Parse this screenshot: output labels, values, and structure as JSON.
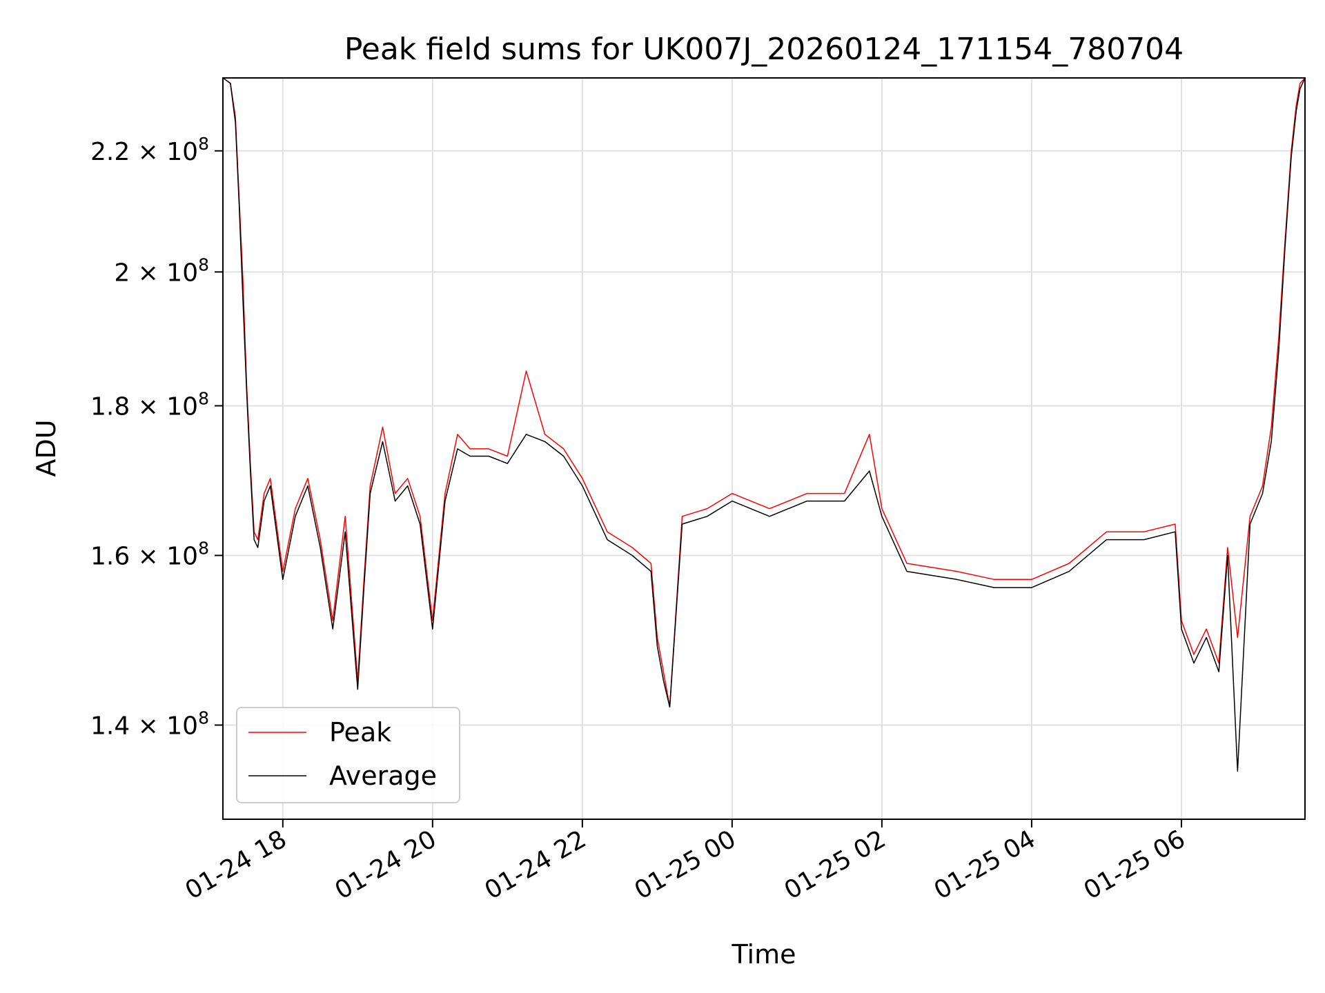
{
  "chart_data": {
    "type": "line",
    "title": "Peak field sums for UK007J_20260124_171154_780704",
    "xlabel": "Time",
    "ylabel": "ADU",
    "y_scale": "log",
    "ylim": [
      130000000,
      233000000
    ],
    "xlim": [
      "2026-01-24T17:12",
      "2026-01-25T07:39"
    ],
    "grid": true,
    "legend_placement": "lower-left",
    "x_ticks": [
      {
        "value": "2026-01-24T18:00",
        "label": "01-24 18"
      },
      {
        "value": "2026-01-24T20:00",
        "label": "01-24 20"
      },
      {
        "value": "2026-01-24T22:00",
        "label": "01-24 22"
      },
      {
        "value": "2026-01-25T00:00",
        "label": "01-25 00"
      },
      {
        "value": "2026-01-25T02:00",
        "label": "01-25 02"
      },
      {
        "value": "2026-01-25T04:00",
        "label": "01-25 04"
      },
      {
        "value": "2026-01-25T06:00",
        "label": "01-25 06"
      }
    ],
    "y_ticks": [
      {
        "value": 140000000,
        "label": "1.4 × 10",
        "exp": "8"
      },
      {
        "value": 160000000,
        "label": "1.6 × 10",
        "exp": "8"
      },
      {
        "value": 180000000,
        "label": "1.8 × 10",
        "exp": "8"
      },
      {
        "value": 200000000,
        "label": "2 × 10",
        "exp": "8"
      },
      {
        "value": 220000000,
        "label": "2.2 × 10",
        "exp": "8"
      }
    ],
    "series": [
      {
        "name": "Peak",
        "color": "#ff0000",
        "x": [
          "2026-01-24T17:12",
          "2026-01-24T17:18",
          "2026-01-24T17:22",
          "2026-01-24T17:25",
          "2026-01-24T17:28",
          "2026-01-24T17:31",
          "2026-01-24T17:34",
          "2026-01-24T17:37",
          "2026-01-24T17:40",
          "2026-01-24T17:45",
          "2026-01-24T17:50",
          "2026-01-24T18:00",
          "2026-01-24T18:10",
          "2026-01-24T18:20",
          "2026-01-24T18:30",
          "2026-01-24T18:40",
          "2026-01-24T18:50",
          "2026-01-24T19:00",
          "2026-01-24T19:05",
          "2026-01-24T19:10",
          "2026-01-24T19:20",
          "2026-01-24T19:30",
          "2026-01-24T19:40",
          "2026-01-24T19:50",
          "2026-01-24T20:00",
          "2026-01-24T20:10",
          "2026-01-24T20:20",
          "2026-01-24T20:30",
          "2026-01-24T20:45",
          "2026-01-24T21:00",
          "2026-01-24T21:15",
          "2026-01-24T21:30",
          "2026-01-24T21:45",
          "2026-01-24T22:00",
          "2026-01-24T22:20",
          "2026-01-24T22:40",
          "2026-01-24T22:55",
          "2026-01-24T23:00",
          "2026-01-24T23:05",
          "2026-01-24T23:10",
          "2026-01-24T23:20",
          "2026-01-24T23:40",
          "2026-01-25T00:00",
          "2026-01-25T00:30",
          "2026-01-25T01:00",
          "2026-01-25T01:30",
          "2026-01-25T01:50",
          "2026-01-25T02:00",
          "2026-01-25T02:20",
          "2026-01-25T03:00",
          "2026-01-25T03:30",
          "2026-01-25T04:00",
          "2026-01-25T04:30",
          "2026-01-25T05:00",
          "2026-01-25T05:30",
          "2026-01-25T05:55",
          "2026-01-25T06:00",
          "2026-01-25T06:10",
          "2026-01-25T06:20",
          "2026-01-25T06:30",
          "2026-01-25T06:37",
          "2026-01-25T06:45",
          "2026-01-25T06:55",
          "2026-01-25T07:05",
          "2026-01-25T07:12",
          "2026-01-25T07:18",
          "2026-01-25T07:23",
          "2026-01-25T07:28",
          "2026-01-25T07:32",
          "2026-01-25T07:35",
          "2026-01-25T07:39"
        ],
        "y": [
          233000000,
          232000000,
          226000000,
          212000000,
          199000000,
          183000000,
          172000000,
          163000000,
          162000000,
          168000000,
          170000000,
          158000000,
          166000000,
          170000000,
          162000000,
          152000000,
          165000000,
          145000000,
          157000000,
          169000000,
          177000000,
          168000000,
          170000000,
          165000000,
          152000000,
          168000000,
          176000000,
          174000000,
          174000000,
          173000000,
          185000000,
          176000000,
          174000000,
          170000000,
          163000000,
          161000000,
          159000000,
          150000000,
          146000000,
          142000000,
          165000000,
          166000000,
          168000000,
          166000000,
          168000000,
          168000000,
          176000000,
          166000000,
          159000000,
          158000000,
          157000000,
          157000000,
          159000000,
          163000000,
          163000000,
          164000000,
          152000000,
          148000000,
          151000000,
          147000000,
          161000000,
          150000000,
          165000000,
          169000000,
          177000000,
          190000000,
          205000000,
          220000000,
          228000000,
          232000000,
          233000000
        ]
      },
      {
        "name": "Average",
        "color": "#000000",
        "x": [
          "2026-01-24T17:12",
          "2026-01-24T17:18",
          "2026-01-24T17:22",
          "2026-01-24T17:25",
          "2026-01-24T17:28",
          "2026-01-24T17:31",
          "2026-01-24T17:34",
          "2026-01-24T17:37",
          "2026-01-24T17:40",
          "2026-01-24T17:45",
          "2026-01-24T17:50",
          "2026-01-24T18:00",
          "2026-01-24T18:10",
          "2026-01-24T18:20",
          "2026-01-24T18:30",
          "2026-01-24T18:40",
          "2026-01-24T18:50",
          "2026-01-24T19:00",
          "2026-01-24T19:05",
          "2026-01-24T19:10",
          "2026-01-24T19:20",
          "2026-01-24T19:30",
          "2026-01-24T19:40",
          "2026-01-24T19:50",
          "2026-01-24T20:00",
          "2026-01-24T20:10",
          "2026-01-24T20:20",
          "2026-01-24T20:30",
          "2026-01-24T20:45",
          "2026-01-24T21:00",
          "2026-01-24T21:15",
          "2026-01-24T21:30",
          "2026-01-24T21:45",
          "2026-01-24T22:00",
          "2026-01-24T22:20",
          "2026-01-24T22:40",
          "2026-01-24T22:55",
          "2026-01-24T23:00",
          "2026-01-24T23:05",
          "2026-01-24T23:10",
          "2026-01-24T23:20",
          "2026-01-24T23:40",
          "2026-01-25T00:00",
          "2026-01-25T00:30",
          "2026-01-25T01:00",
          "2026-01-25T01:30",
          "2026-01-25T01:50",
          "2026-01-25T02:00",
          "2026-01-25T02:20",
          "2026-01-25T03:00",
          "2026-01-25T03:30",
          "2026-01-25T04:00",
          "2026-01-25T04:30",
          "2026-01-25T05:00",
          "2026-01-25T05:30",
          "2026-01-25T05:55",
          "2026-01-25T06:00",
          "2026-01-25T06:10",
          "2026-01-25T06:20",
          "2026-01-25T06:30",
          "2026-01-25T06:37",
          "2026-01-25T06:45",
          "2026-01-25T06:55",
          "2026-01-25T07:05",
          "2026-01-25T07:12",
          "2026-01-25T07:18",
          "2026-01-25T07:23",
          "2026-01-25T07:28",
          "2026-01-25T07:32",
          "2026-01-25T07:35",
          "2026-01-25T07:39"
        ],
        "y": [
          233000000,
          232000000,
          225000000,
          211000000,
          196000000,
          182000000,
          171000000,
          162000000,
          161000000,
          167000000,
          169000000,
          157000000,
          165000000,
          169000000,
          161000000,
          151000000,
          163000000,
          144000000,
          156000000,
          168000000,
          175000000,
          167000000,
          169000000,
          164000000,
          151000000,
          167000000,
          174000000,
          173000000,
          173000000,
          172000000,
          176000000,
          175000000,
          173000000,
          169000000,
          162000000,
          160000000,
          158000000,
          149000000,
          145000000,
          142000000,
          164000000,
          165000000,
          167000000,
          165000000,
          167000000,
          167000000,
          171000000,
          165000000,
          158000000,
          157000000,
          156000000,
          156000000,
          158000000,
          162000000,
          162000000,
          163000000,
          151000000,
          147000000,
          150000000,
          146000000,
          160000000,
          135000000,
          164000000,
          168000000,
          175000000,
          188000000,
          204000000,
          219000000,
          227000000,
          231000000,
          233000000
        ]
      }
    ]
  }
}
